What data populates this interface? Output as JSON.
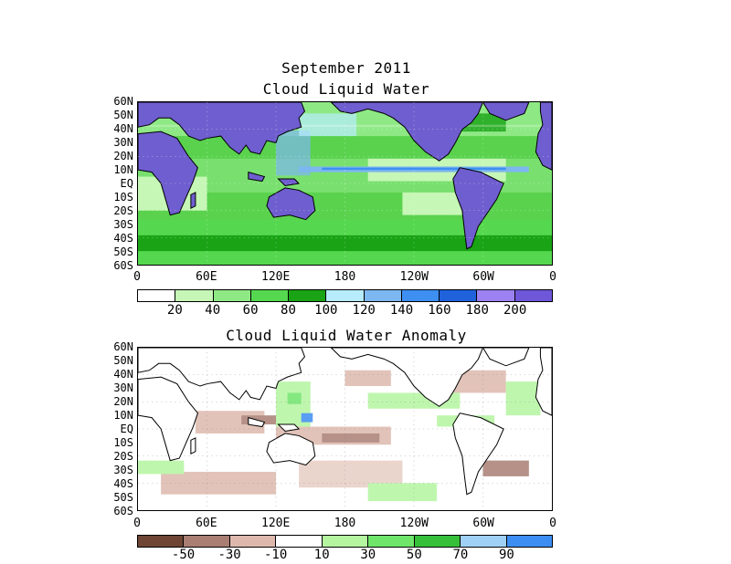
{
  "titles": {
    "main": "September 2011",
    "top_panel": "Cloud Liquid Water",
    "bottom_panel": "Cloud Liquid Water Anomaly"
  },
  "lat_labels": [
    "60N",
    "50N",
    "40N",
    "30N",
    "20N",
    "10N",
    "EQ",
    "10S",
    "20S",
    "30S",
    "40S",
    "50S",
    "60S"
  ],
  "lon_labels": [
    "0",
    "60E",
    "120E",
    "180",
    "120W",
    "60W",
    "0"
  ],
  "top_colorbar": {
    "colors": [
      "#ffffff",
      "#c6f7b6",
      "#8ee985",
      "#55d84f",
      "#19a315",
      "#b6ecfc",
      "#7db7ef",
      "#3d8ff2",
      "#1f62dc",
      "#9c81f2",
      "#6f57d9"
    ],
    "labels": [
      "20",
      "40",
      "60",
      "80",
      "100",
      "120",
      "140",
      "160",
      "180",
      "200"
    ]
  },
  "bottom_colorbar": {
    "colors": [
      "#6f4535",
      "#a97e73",
      "#ddb9ad",
      "#ffffff",
      "#b5f5a0",
      "#6fe56a",
      "#36c03a",
      "#9fd1f7",
      "#3d8ef2"
    ],
    "labels": [
      "-50",
      "-30",
      "-10",
      "10",
      "30",
      "50",
      "70",
      "90"
    ]
  },
  "map_colors": {
    "land_top": "#6f5ecf",
    "ocean_base_top": "#5ad24e",
    "ocean_base_bottom": "#ffffff",
    "coast": "#000000"
  }
}
